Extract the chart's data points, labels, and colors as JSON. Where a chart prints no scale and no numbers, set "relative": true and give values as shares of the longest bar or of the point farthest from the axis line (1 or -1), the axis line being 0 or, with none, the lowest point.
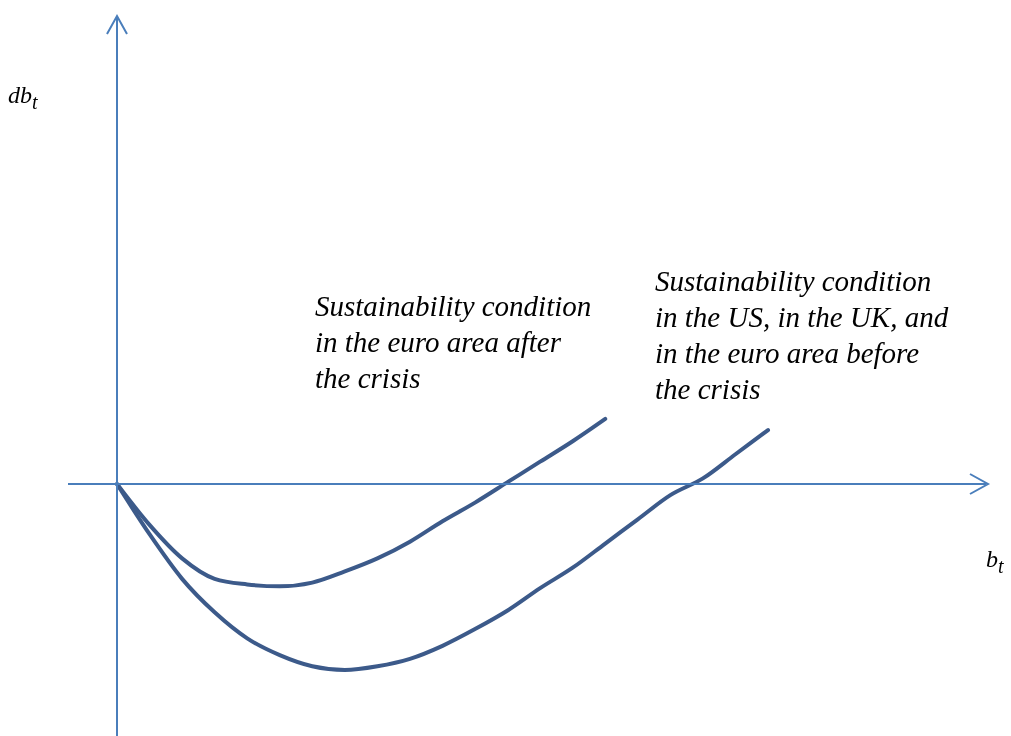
{
  "chart_data": {
    "type": "line",
    "relative": true,
    "annotations": [
      "db$_{t}$",
      "b$_{t}$"
    ],
    "ref_lines": [
      {
        "axis": "y",
        "value": 0,
        "color": "#4a7ebb"
      }
    ],
    "categories": [
      null,
      null,
      null,
      null,
      null,
      null,
      null,
      null,
      null,
      null,
      null,
      null,
      null,
      null,
      null,
      null,
      null,
      null,
      null,
      null,
      null
    ],
    "series": [
      {
        "name": "Sustainability condition in the euro area after the crisis",
        "color": "#3c5a8a",
        "values": [
          0,
          -0.22,
          -0.4,
          -0.51,
          -0.54,
          -0.55,
          -0.53,
          -0.47,
          -0.4,
          -0.31,
          -0.2,
          -0.1,
          0.01,
          0.12,
          0.23,
          0.35,
          null,
          null,
          null,
          null,
          null
        ]
      },
      {
        "name": "Sustainability condition in the US, in the UK, and in the euro area before the crisis",
        "color": "#3c5a8a",
        "values": [
          0,
          -0.27,
          -0.51,
          -0.69,
          -0.83,
          -0.92,
          -0.98,
          -1,
          -0.98,
          -0.94,
          -0.87,
          -0.78,
          -0.68,
          -0.56,
          -0.45,
          -0.32,
          -0.19,
          -0.06,
          0.03,
          0.16,
          0.29
        ]
      }
    ]
  }
}
